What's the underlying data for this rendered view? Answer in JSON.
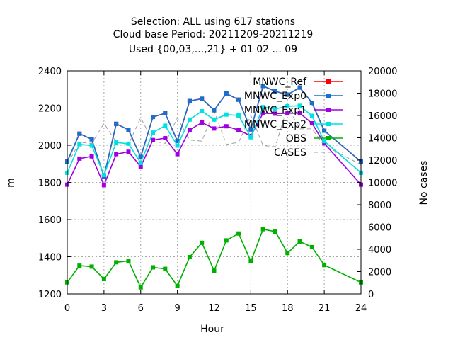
{
  "chart_data": {
    "type": "line",
    "title_lines": [
      "Selection: ALL using   617 stations",
      "Cloud base   Period: 20211209-20211219",
      "Used {00,03,...,21} + 01 02 ... 09"
    ],
    "xlabel": "Hour",
    "ylabel": "m",
    "y2label": "No cases",
    "x_ticks": [
      0,
      3,
      6,
      9,
      12,
      15,
      18,
      21,
      24
    ],
    "xlim": [
      0,
      24
    ],
    "ylim": [
      1200,
      2400
    ],
    "y_ticks": [
      1200,
      1400,
      1600,
      1800,
      2000,
      2200,
      2400
    ],
    "y2lim": [
      0,
      20000
    ],
    "y2_ticks": [
      0,
      2000,
      4000,
      6000,
      8000,
      10000,
      12000,
      14000,
      16000,
      18000,
      20000
    ],
    "grid": true,
    "legend_position": "top-right",
    "x": [
      0,
      1,
      2,
      3,
      4,
      5,
      6,
      7,
      8,
      9,
      10,
      11,
      12,
      13,
      14,
      15,
      16,
      17,
      18,
      19,
      20,
      21,
      24
    ],
    "series": [
      {
        "name": "MNWC_Ref",
        "color": "#ff0000",
        "axis": "y",
        "style": "line-points",
        "values": [
          1912,
          2062,
          2032,
          1832,
          2115,
          2083,
          1937,
          2152,
          2172,
          2023,
          2238,
          2250,
          2188,
          2278,
          2245,
          2085,
          2318,
          2290,
          2272,
          2310,
          2228,
          2078,
          1912
        ]
      },
      {
        "name": "MNWC_Exp0",
        "color": "#1a6fcc",
        "axis": "y",
        "style": "line-points",
        "values": [
          1912,
          2062,
          2032,
          1832,
          2115,
          2083,
          1937,
          2152,
          2172,
          2023,
          2238,
          2250,
          2188,
          2278,
          2245,
          2085,
          2318,
          2290,
          2272,
          2310,
          2228,
          2078,
          1912
        ]
      },
      {
        "name": "MNWC_Exp1",
        "color": "#a000e0",
        "axis": "y",
        "style": "line-points",
        "values": [
          1788,
          1928,
          1940,
          1785,
          1952,
          1965,
          1885,
          2028,
          2038,
          1952,
          2082,
          2122,
          2090,
          2102,
          2082,
          2050,
          2172,
          2170,
          2172,
          2172,
          2118,
          2010,
          1788
        ]
      },
      {
        "name": "MNWC_Exp2",
        "color": "#00e0e0",
        "axis": "y",
        "style": "line-points",
        "values": [
          1852,
          2005,
          1998,
          1840,
          2015,
          2008,
          1905,
          2068,
          2105,
          1998,
          2138,
          2183,
          2138,
          2165,
          2160,
          2043,
          2205,
          2195,
          2210,
          2212,
          2158,
          2022,
          1852
        ]
      },
      {
        "name": "OBS",
        "color": "#00b000",
        "axis": "y",
        "style": "line-points",
        "values": [
          1262,
          1352,
          1347,
          1280,
          1370,
          1378,
          1235,
          1343,
          1335,
          1243,
          1398,
          1475,
          1325,
          1488,
          1525,
          1375,
          1548,
          1535,
          1420,
          1482,
          1452,
          1355,
          1262
        ]
      },
      {
        "name": "CASES",
        "color": "#a0a0a0",
        "axis": "y2",
        "style": "dashed",
        "values": [
          11600,
          13600,
          13500,
          15300,
          13600,
          13400,
          15800,
          13700,
          13500,
          15800,
          13800,
          13700,
          16400,
          13400,
          13600,
          16000,
          13300,
          13200,
          16800,
          14800,
          14800,
          13300,
          11600
        ]
      }
    ]
  }
}
